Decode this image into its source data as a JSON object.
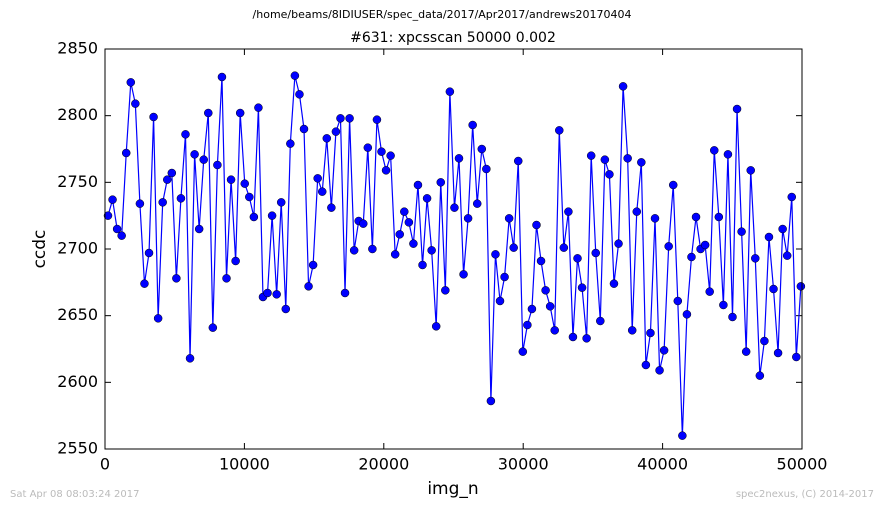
{
  "chart_data": {
    "type": "line",
    "suptitle": "/home/beams/8IDIUSER/spec_data/2017/Apr2017/andrews20170404",
    "title": "#631: xpcsscan 50000 0.002",
    "xlabel": "img_n",
    "ylabel": "ccdc",
    "xlim": [
      0,
      50000
    ],
    "ylim": [
      2550,
      2850
    ],
    "xticks": [
      0,
      10000,
      20000,
      30000,
      40000,
      50000
    ],
    "yticks": [
      2550,
      2600,
      2650,
      2700,
      2750,
      2800,
      2850
    ],
    "grid": false,
    "x": [
      215,
      542,
      869,
      1196,
      1523,
      1850,
      2177,
      2504,
      2831,
      3158,
      3485,
      3812,
      4139,
      4466,
      4793,
      5120,
      5447,
      5774,
      6101,
      6428,
      6755,
      7082,
      7409,
      7736,
      8063,
      8390,
      8717,
      9044,
      9371,
      9698,
      10025,
      10352,
      10679,
      11006,
      11333,
      11660,
      11987,
      12314,
      12641,
      12968,
      13295,
      13622,
      13949,
      14276,
      14603,
      14930,
      15257,
      15584,
      15911,
      16238,
      16565,
      16892,
      17219,
      17546,
      17873,
      18200,
      18527,
      18854,
      19181,
      19508,
      19835,
      20162,
      20489,
      20816,
      21143,
      21470,
      21797,
      22124,
      22451,
      22778,
      23105,
      23432,
      23759,
      24086,
      24413,
      24740,
      25067,
      25394,
      25721,
      26048,
      26375,
      26702,
      27029,
      27356,
      27683,
      28010,
      28337,
      28664,
      28991,
      29318,
      29645,
      29972,
      30299,
      30626,
      30953,
      31280,
      31607,
      31934,
      32261,
      32588,
      32915,
      33242,
      33569,
      33896,
      34223,
      34550,
      34877,
      35204,
      35531,
      35858,
      36185,
      36512,
      36839,
      37166,
      37493,
      37820,
      38147,
      38474,
      38801,
      39128,
      39455,
      39782,
      40109,
      40436,
      40763,
      41090,
      41417,
      41744,
      42071,
      42398,
      42725,
      43052,
      43379,
      43706,
      44033,
      44360,
      44687,
      45014,
      45341,
      45668,
      45995,
      46322,
      46649,
      46976,
      47303,
      47630,
      47957,
      48284,
      48611,
      48938,
      49265,
      49592,
      49919
    ],
    "series": [
      {
        "name": "ccdc",
        "color": "#0000ff",
        "values": [
          2725,
          2737,
          2715,
          2710,
          2772,
          2825,
          2809,
          2734,
          2674,
          2697,
          2799,
          2648,
          2735,
          2752,
          2757,
          2678,
          2738,
          2786,
          2618,
          2771,
          2715,
          2767,
          2802,
          2641,
          2763,
          2829,
          2678,
          2752,
          2691,
          2802,
          2749,
          2739,
          2724,
          2806,
          2664,
          2667,
          2725,
          2666,
          2735,
          2655,
          2779,
          2830,
          2816,
          2790,
          2672,
          2688,
          2753,
          2743,
          2783,
          2731,
          2788,
          2798,
          2667,
          2798,
          2699,
          2721,
          2719,
          2776,
          2700,
          2797,
          2773,
          2759,
          2770,
          2696,
          2711,
          2728,
          2720,
          2704,
          2748,
          2688,
          2738,
          2699,
          2642,
          2750,
          2669,
          2818,
          2731,
          2768,
          2681,
          2723,
          2793,
          2734,
          2775,
          2760,
          2586,
          2696,
          2661,
          2679,
          2723,
          2701,
          2766,
          2623,
          2643,
          2655,
          2718,
          2691,
          2669,
          2657,
          2639,
          2789,
          2701,
          2728,
          2634,
          2693,
          2671,
          2633,
          2770,
          2697,
          2646,
          2767,
          2756,
          2674,
          2704,
          2822,
          2768,
          2639,
          2728,
          2765,
          2613,
          2637,
          2723,
          2609,
          2624,
          2702,
          2748,
          2661,
          2560,
          2651,
          2694,
          2724,
          2700,
          2703,
          2668,
          2774,
          2724,
          2658,
          2771,
          2649,
          2805,
          2713,
          2623,
          2759,
          2693,
          2605,
          2631,
          2709,
          2670,
          2622,
          2715,
          2695,
          2739,
          2619,
          2672
        ]
      }
    ]
  },
  "footer": {
    "left": "Sat Apr 08 08:03:24 2017",
    "right": "spec2nexus, (C) 2014-2017"
  }
}
